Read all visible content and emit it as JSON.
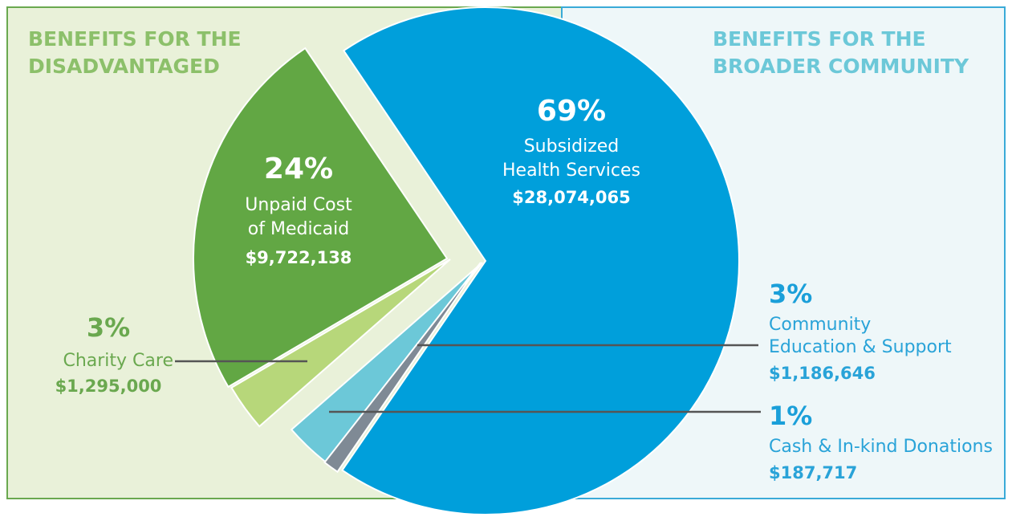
{
  "chart_data": {
    "type": "pie",
    "groups": [
      {
        "title": [
          "BENEFITS FOR THE",
          "DISADVANTAGED"
        ],
        "color": "#8cc06a"
      },
      {
        "title": [
          "BENEFITS FOR THE",
          "BROADER COMMUNITY"
        ],
        "color": "#6cc8d8"
      }
    ],
    "categories": [
      [
        "Subsidized",
        "Health Services"
      ],
      [
        "Cash & In-kind Donations"
      ],
      [
        "Community",
        "Education & Support"
      ],
      [
        "Charity Care"
      ],
      [
        "Unpaid Cost",
        "of Medicaid"
      ]
    ],
    "values": [
      69,
      1,
      3,
      3,
      24
    ],
    "value_labels": [
      "69%",
      "1%",
      "3%",
      "3%",
      "24%"
    ],
    "amounts": [
      28074065,
      187717,
      1186646,
      1295000,
      9722138
    ],
    "amount_labels": [
      "$28,074,065",
      "$187,717",
      "$1,186,646",
      "$1,295,000",
      "$9,722,138"
    ],
    "colors": [
      "#009fdb",
      "#7f8a95",
      "#6cc8d8",
      "#b7d77a",
      "#62a744"
    ]
  }
}
